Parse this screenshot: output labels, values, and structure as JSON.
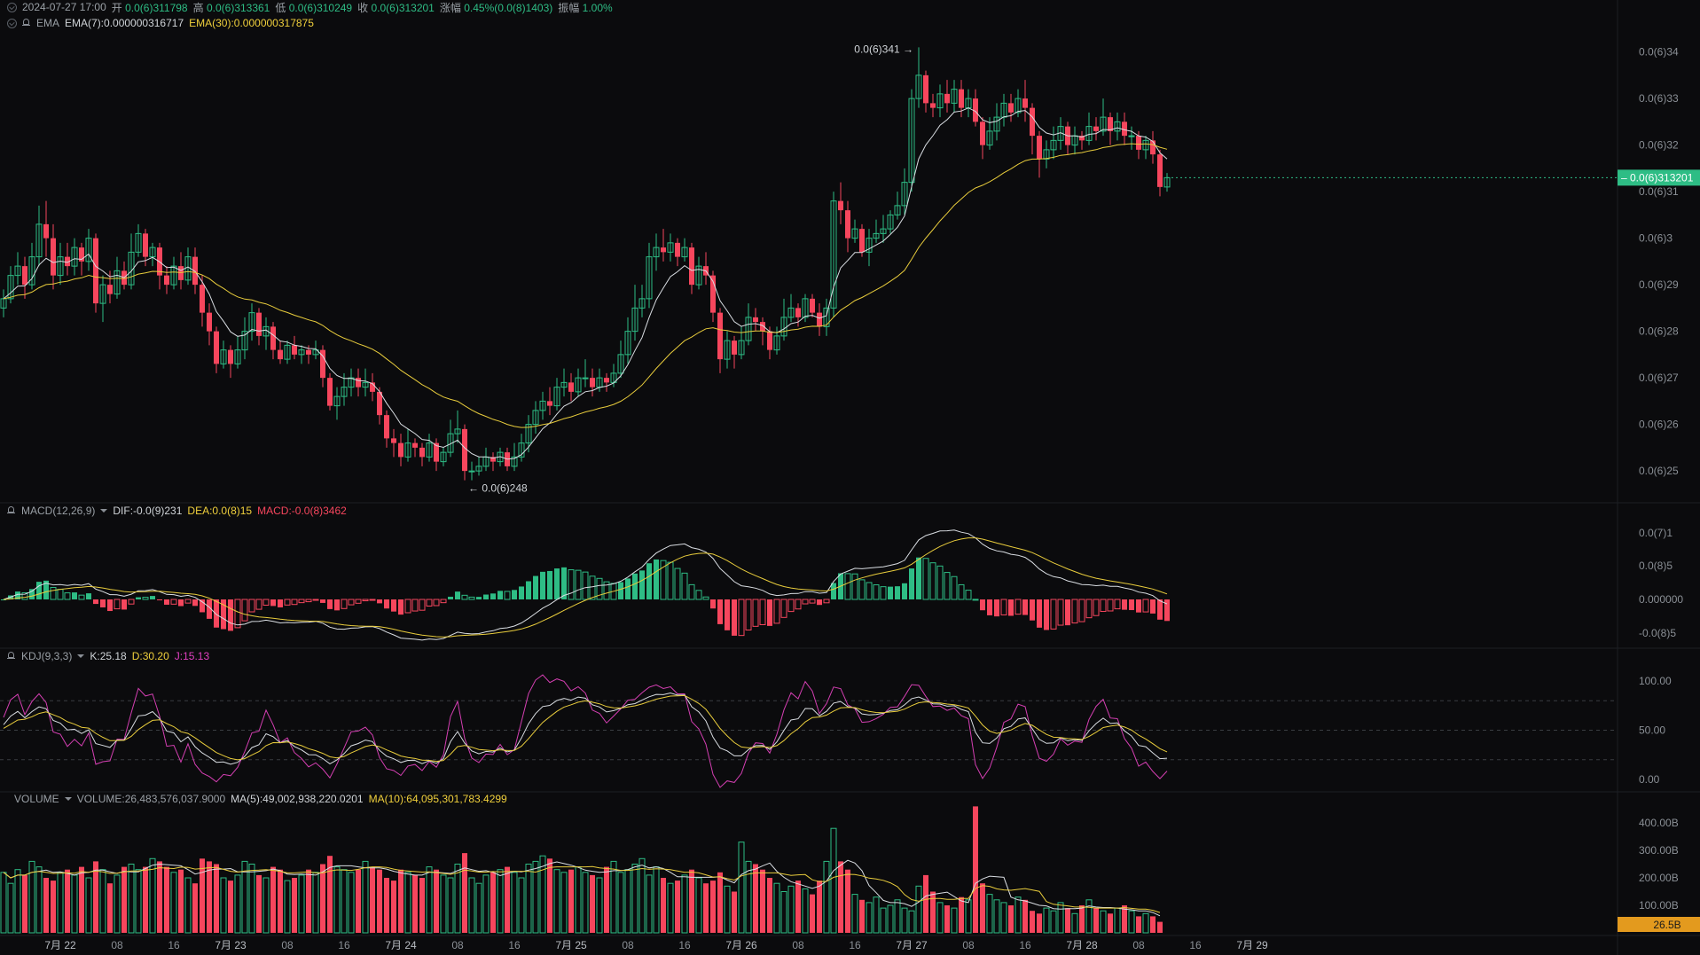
{
  "ohlc_bar": {
    "time": "2024-07-27 17:00",
    "open_label": "开",
    "open": "0.0(6)311798",
    "high_label": "高",
    "high": "0.0(6)313361",
    "low_label": "低",
    "low": "0.0(6)310249",
    "close_label": "收",
    "close": "0.0(6)313201",
    "change_label": "涨幅",
    "change": "0.45%(0.0(8)1403)",
    "amp_label": "振幅",
    "amp": "1.00%"
  },
  "ema_bar": {
    "name": "EMA",
    "ema7": "EMA(7):0.000000316717",
    "ema30": "EMA(30):0.000000317875"
  },
  "macd_bar": {
    "name": "MACD(12,26,9)",
    "dif": "DIF:-0.0(9)231",
    "dea": "DEA:0.0(8)15",
    "macd": "MACD:-0.0(8)3462"
  },
  "kdj_bar": {
    "name": "KDJ(9,3,3)",
    "k": "K:25.18",
    "d": "D:30.20",
    "j": "J:15.13"
  },
  "vol_bar": {
    "name": "VOLUME",
    "vol": "VOLUME:26,483,576,037.9000",
    "ma5": "MA(5):49,002,938,220.0201",
    "ma10": "MA(10):64,095,301,783.4299"
  },
  "annotations": {
    "high_mark": "0.0(6)341 →",
    "low_mark": "← 0.0(6)248"
  },
  "current_price": "0.0(6)313201",
  "current_volume": "26.5B",
  "colors": {
    "up": "#2ebd85",
    "down": "#f6465d",
    "ema7": "#d9dde2",
    "ema30": "#e8cc3c",
    "j": "#d43fb2",
    "bg": "#0b0b0d"
  },
  "chart_data": {
    "type": "candlestick",
    "price_axis_ticks": [
      "0.0(6)34",
      "0.0(6)33",
      "0.0(6)32",
      "0.0(6)31",
      "0.0(6)3",
      "0.0(6)29",
      "0.0(6)28",
      "0.0(6)27",
      "0.0(6)26",
      "0.0(6)25"
    ],
    "price_axis_values": [
      0.34,
      0.33,
      0.32,
      0.31,
      0.3,
      0.29,
      0.28,
      0.27,
      0.26,
      0.25
    ],
    "price_unit_note": "values in micro-units (x1e-6)",
    "macd_axis_ticks": [
      "0.0(7)1",
      "0.0(8)5",
      "0.000000",
      "-0.0(8)5"
    ],
    "kdj_axis_ticks": [
      "100.00",
      "50.00",
      "0.00"
    ],
    "volume_axis_ticks": [
      "400.00B",
      "300.00B",
      "200.00B",
      "100.00B"
    ],
    "x_axis_ticks": [
      "7月 22",
      "08",
      "16",
      "7月 23",
      "08",
      "16",
      "7月 24",
      "08",
      "16",
      "7月 25",
      "08",
      "16",
      "7月 26",
      "08",
      "16",
      "7月 27",
      "08",
      "16",
      "7月 28",
      "08",
      "16",
      "7月 29"
    ],
    "candle_interval": "1h",
    "candles_note": "open/close/high/low in 1e-6 units, approximately read from the chart",
    "candles": [
      [
        0.285,
        0.287,
        0.289,
        0.283
      ],
      [
        0.287,
        0.292,
        0.294,
        0.286
      ],
      [
        0.292,
        0.294,
        0.297,
        0.29
      ],
      [
        0.294,
        0.29,
        0.296,
        0.287
      ],
      [
        0.29,
        0.296,
        0.299,
        0.289
      ],
      [
        0.296,
        0.303,
        0.307,
        0.294
      ],
      [
        0.303,
        0.3,
        0.308,
        0.296
      ],
      [
        0.3,
        0.292,
        0.303,
        0.289
      ],
      [
        0.292,
        0.296,
        0.299,
        0.29
      ],
      [
        0.296,
        0.294,
        0.299,
        0.292
      ],
      [
        0.294,
        0.298,
        0.3,
        0.292
      ],
      [
        0.298,
        0.295,
        0.299,
        0.292
      ],
      [
        0.295,
        0.3,
        0.302,
        0.293
      ],
      [
        0.3,
        0.286,
        0.301,
        0.284
      ],
      [
        0.286,
        0.29,
        0.292,
        0.282
      ],
      [
        0.29,
        0.288,
        0.293,
        0.286
      ],
      [
        0.288,
        0.293,
        0.296,
        0.287
      ],
      [
        0.293,
        0.29,
        0.295,
        0.289
      ],
      [
        0.29,
        0.297,
        0.301,
        0.289
      ],
      [
        0.297,
        0.301,
        0.303,
        0.296
      ],
      [
        0.301,
        0.296,
        0.302,
        0.294
      ],
      [
        0.296,
        0.298,
        0.299,
        0.294
      ],
      [
        0.298,
        0.292,
        0.299,
        0.289
      ],
      [
        0.292,
        0.29,
        0.294,
        0.288
      ],
      [
        0.29,
        0.294,
        0.296,
        0.289
      ],
      [
        0.294,
        0.291,
        0.297,
        0.289
      ],
      [
        0.291,
        0.296,
        0.298,
        0.29
      ],
      [
        0.296,
        0.29,
        0.298,
        0.288
      ],
      [
        0.29,
        0.284,
        0.292,
        0.281
      ],
      [
        0.284,
        0.28,
        0.286,
        0.277
      ],
      [
        0.28,
        0.273,
        0.281,
        0.271
      ],
      [
        0.273,
        0.276,
        0.278,
        0.272
      ],
      [
        0.276,
        0.273,
        0.277,
        0.27
      ],
      [
        0.273,
        0.276,
        0.279,
        0.272
      ],
      [
        0.276,
        0.28,
        0.283,
        0.274
      ],
      [
        0.28,
        0.284,
        0.286,
        0.278
      ],
      [
        0.284,
        0.279,
        0.285,
        0.277
      ],
      [
        0.279,
        0.281,
        0.283,
        0.276
      ],
      [
        0.281,
        0.276,
        0.282,
        0.274
      ],
      [
        0.276,
        0.274,
        0.278,
        0.273
      ],
      [
        0.274,
        0.277,
        0.278,
        0.273
      ],
      [
        0.277,
        0.275,
        0.279,
        0.274
      ],
      [
        0.275,
        0.276,
        0.277,
        0.273
      ],
      [
        0.276,
        0.275,
        0.277,
        0.273
      ],
      [
        0.275,
        0.276,
        0.278,
        0.274
      ],
      [
        0.276,
        0.27,
        0.277,
        0.268
      ],
      [
        0.27,
        0.264,
        0.271,
        0.263
      ],
      [
        0.264,
        0.266,
        0.268,
        0.261
      ],
      [
        0.266,
        0.268,
        0.271,
        0.264
      ],
      [
        0.268,
        0.27,
        0.272,
        0.266
      ],
      [
        0.27,
        0.268,
        0.272,
        0.266
      ],
      [
        0.268,
        0.269,
        0.272,
        0.266
      ],
      [
        0.269,
        0.267,
        0.271,
        0.265
      ],
      [
        0.267,
        0.262,
        0.268,
        0.26
      ],
      [
        0.262,
        0.257,
        0.263,
        0.255
      ],
      [
        0.257,
        0.256,
        0.259,
        0.253
      ],
      [
        0.256,
        0.253,
        0.258,
        0.251
      ],
      [
        0.253,
        0.256,
        0.259,
        0.252
      ],
      [
        0.256,
        0.255,
        0.257,
        0.253
      ],
      [
        0.255,
        0.253,
        0.256,
        0.251
      ],
      [
        0.253,
        0.256,
        0.258,
        0.252
      ],
      [
        0.256,
        0.252,
        0.257,
        0.25
      ],
      [
        0.252,
        0.254,
        0.255,
        0.251
      ],
      [
        0.254,
        0.258,
        0.261,
        0.253
      ],
      [
        0.258,
        0.259,
        0.263,
        0.256
      ],
      [
        0.259,
        0.25,
        0.26,
        0.248
      ],
      [
        0.25,
        0.25,
        0.252,
        0.248
      ],
      [
        0.25,
        0.251,
        0.253,
        0.249
      ],
      [
        0.251,
        0.253,
        0.255,
        0.25
      ],
      [
        0.253,
        0.252,
        0.254,
        0.25
      ],
      [
        0.252,
        0.254,
        0.255,
        0.251
      ],
      [
        0.254,
        0.251,
        0.255,
        0.25
      ],
      [
        0.251,
        0.253,
        0.256,
        0.25
      ],
      [
        0.253,
        0.256,
        0.258,
        0.252
      ],
      [
        0.256,
        0.26,
        0.262,
        0.254
      ],
      [
        0.26,
        0.263,
        0.265,
        0.258
      ],
      [
        0.263,
        0.265,
        0.267,
        0.261
      ],
      [
        0.265,
        0.264,
        0.268,
        0.262
      ],
      [
        0.264,
        0.268,
        0.27,
        0.263
      ],
      [
        0.268,
        0.269,
        0.272,
        0.266
      ],
      [
        0.269,
        0.267,
        0.271,
        0.265
      ],
      [
        0.267,
        0.27,
        0.272,
        0.266
      ],
      [
        0.27,
        0.27,
        0.274,
        0.268
      ],
      [
        0.27,
        0.268,
        0.272,
        0.266
      ],
      [
        0.268,
        0.27,
        0.272,
        0.267
      ],
      [
        0.27,
        0.269,
        0.271,
        0.267
      ],
      [
        0.269,
        0.271,
        0.273,
        0.268
      ],
      [
        0.271,
        0.275,
        0.278,
        0.27
      ],
      [
        0.275,
        0.28,
        0.283,
        0.273
      ],
      [
        0.28,
        0.285,
        0.29,
        0.278
      ],
      [
        0.285,
        0.287,
        0.29,
        0.283
      ],
      [
        0.287,
        0.296,
        0.299,
        0.285
      ],
      [
        0.296,
        0.298,
        0.301,
        0.293
      ],
      [
        0.298,
        0.297,
        0.302,
        0.295
      ],
      [
        0.297,
        0.299,
        0.301,
        0.295
      ],
      [
        0.299,
        0.296,
        0.3,
        0.294
      ],
      [
        0.296,
        0.298,
        0.3,
        0.295
      ],
      [
        0.298,
        0.29,
        0.299,
        0.288
      ],
      [
        0.29,
        0.294,
        0.296,
        0.289
      ],
      [
        0.294,
        0.292,
        0.297,
        0.29
      ],
      [
        0.292,
        0.284,
        0.293,
        0.282
      ],
      [
        0.284,
        0.274,
        0.285,
        0.271
      ],
      [
        0.274,
        0.278,
        0.28,
        0.272
      ],
      [
        0.278,
        0.275,
        0.279,
        0.272
      ],
      [
        0.275,
        0.278,
        0.281,
        0.274
      ],
      [
        0.278,
        0.283,
        0.286,
        0.277
      ],
      [
        0.283,
        0.282,
        0.285,
        0.28
      ],
      [
        0.282,
        0.28,
        0.283,
        0.277
      ],
      [
        0.28,
        0.276,
        0.281,
        0.274
      ],
      [
        0.276,
        0.279,
        0.281,
        0.275
      ],
      [
        0.279,
        0.283,
        0.287,
        0.278
      ],
      [
        0.283,
        0.285,
        0.288,
        0.282
      ],
      [
        0.285,
        0.283,
        0.286,
        0.281
      ],
      [
        0.283,
        0.287,
        0.288,
        0.282
      ],
      [
        0.287,
        0.284,
        0.288,
        0.283
      ],
      [
        0.284,
        0.281,
        0.286,
        0.279
      ],
      [
        0.281,
        0.285,
        0.287,
        0.279
      ],
      [
        0.285,
        0.308,
        0.31,
        0.283
      ],
      [
        0.308,
        0.306,
        0.312,
        0.303
      ],
      [
        0.306,
        0.3,
        0.308,
        0.297
      ],
      [
        0.3,
        0.302,
        0.304,
        0.299
      ],
      [
        0.302,
        0.297,
        0.303,
        0.296
      ],
      [
        0.297,
        0.3,
        0.302,
        0.294
      ],
      [
        0.3,
        0.301,
        0.304,
        0.299
      ],
      [
        0.301,
        0.302,
        0.305,
        0.299
      ],
      [
        0.302,
        0.305,
        0.306,
        0.301
      ],
      [
        0.305,
        0.307,
        0.31,
        0.304
      ],
      [
        0.307,
        0.312,
        0.315,
        0.305
      ],
      [
        0.312,
        0.33,
        0.332,
        0.31
      ],
      [
        0.33,
        0.335,
        0.341,
        0.328
      ],
      [
        0.335,
        0.329,
        0.336,
        0.327
      ],
      [
        0.329,
        0.328,
        0.331,
        0.326
      ],
      [
        0.328,
        0.331,
        0.333,
        0.326
      ],
      [
        0.331,
        0.329,
        0.334,
        0.327
      ],
      [
        0.329,
        0.332,
        0.334,
        0.327
      ],
      [
        0.332,
        0.328,
        0.334,
        0.326
      ],
      [
        0.328,
        0.33,
        0.332,
        0.326
      ],
      [
        0.33,
        0.325,
        0.332,
        0.324
      ],
      [
        0.325,
        0.32,
        0.326,
        0.317
      ],
      [
        0.32,
        0.323,
        0.326,
        0.319
      ],
      [
        0.323,
        0.326,
        0.329,
        0.321
      ],
      [
        0.326,
        0.329,
        0.331,
        0.324
      ],
      [
        0.329,
        0.327,
        0.331,
        0.325
      ],
      [
        0.327,
        0.33,
        0.332,
        0.326
      ],
      [
        0.33,
        0.328,
        0.334,
        0.325
      ],
      [
        0.328,
        0.322,
        0.329,
        0.318
      ],
      [
        0.322,
        0.317,
        0.323,
        0.313
      ],
      [
        0.317,
        0.319,
        0.321,
        0.315
      ],
      [
        0.319,
        0.321,
        0.324,
        0.317
      ],
      [
        0.321,
        0.324,
        0.326,
        0.319
      ],
      [
        0.324,
        0.32,
        0.325,
        0.318
      ],
      [
        0.32,
        0.322,
        0.324,
        0.318
      ],
      [
        0.322,
        0.321,
        0.323,
        0.319
      ],
      [
        0.321,
        0.324,
        0.327,
        0.32
      ],
      [
        0.324,
        0.323,
        0.326,
        0.321
      ],
      [
        0.323,
        0.326,
        0.33,
        0.322
      ],
      [
        0.326,
        0.323,
        0.327,
        0.32
      ],
      [
        0.323,
        0.325,
        0.327,
        0.321
      ],
      [
        0.325,
        0.322,
        0.327,
        0.32
      ],
      [
        0.322,
        0.322,
        0.324,
        0.319
      ],
      [
        0.322,
        0.319,
        0.323,
        0.317
      ],
      [
        0.319,
        0.321,
        0.322,
        0.317
      ],
      [
        0.321,
        0.318,
        0.323,
        0.316
      ],
      [
        0.318,
        0.311,
        0.319,
        0.309
      ],
      [
        0.311,
        0.313,
        0.314,
        0.31
      ]
    ],
    "volume_note": "volume in billions, approximate",
    "volumes": [
      220,
      180,
      230,
      210,
      260,
      240,
      200,
      190,
      220,
      230,
      210,
      240,
      200,
      260,
      230,
      180,
      210,
      240,
      250,
      230,
      240,
      270,
      260,
      240,
      220,
      230,
      200,
      180,
      270,
      260,
      250,
      200,
      190,
      210,
      260,
      250,
      210,
      200,
      240,
      230,
      190,
      200,
      210,
      230,
      220,
      250,
      280,
      240,
      230,
      220,
      230,
      260,
      240,
      230,
      200,
      190,
      230,
      220,
      210,
      200,
      240,
      230,
      210,
      200,
      250,
      290,
      200,
      180,
      210,
      220,
      230,
      240,
      220,
      200,
      250,
      260,
      280,
      270,
      230,
      220,
      230,
      240,
      220,
      210,
      200,
      240,
      260,
      220,
      230,
      250,
      270,
      210,
      240,
      200,
      180,
      190,
      210,
      230,
      200,
      180,
      190,
      220,
      170,
      150,
      330,
      260,
      250,
      230,
      200,
      180,
      150,
      170,
      190,
      160,
      140,
      190,
      260,
      380,
      260,
      230,
      140,
      120,
      110,
      130,
      90,
      100,
      120,
      90,
      80,
      170,
      210,
      150,
      110,
      100,
      90,
      130,
      120,
      460,
      180,
      140,
      120,
      110,
      100,
      130,
      120,
      80,
      70,
      90,
      80,
      110,
      90,
      70,
      100,
      120,
      90,
      80,
      70,
      90,
      100,
      80,
      60,
      70,
      60,
      40
    ]
  }
}
